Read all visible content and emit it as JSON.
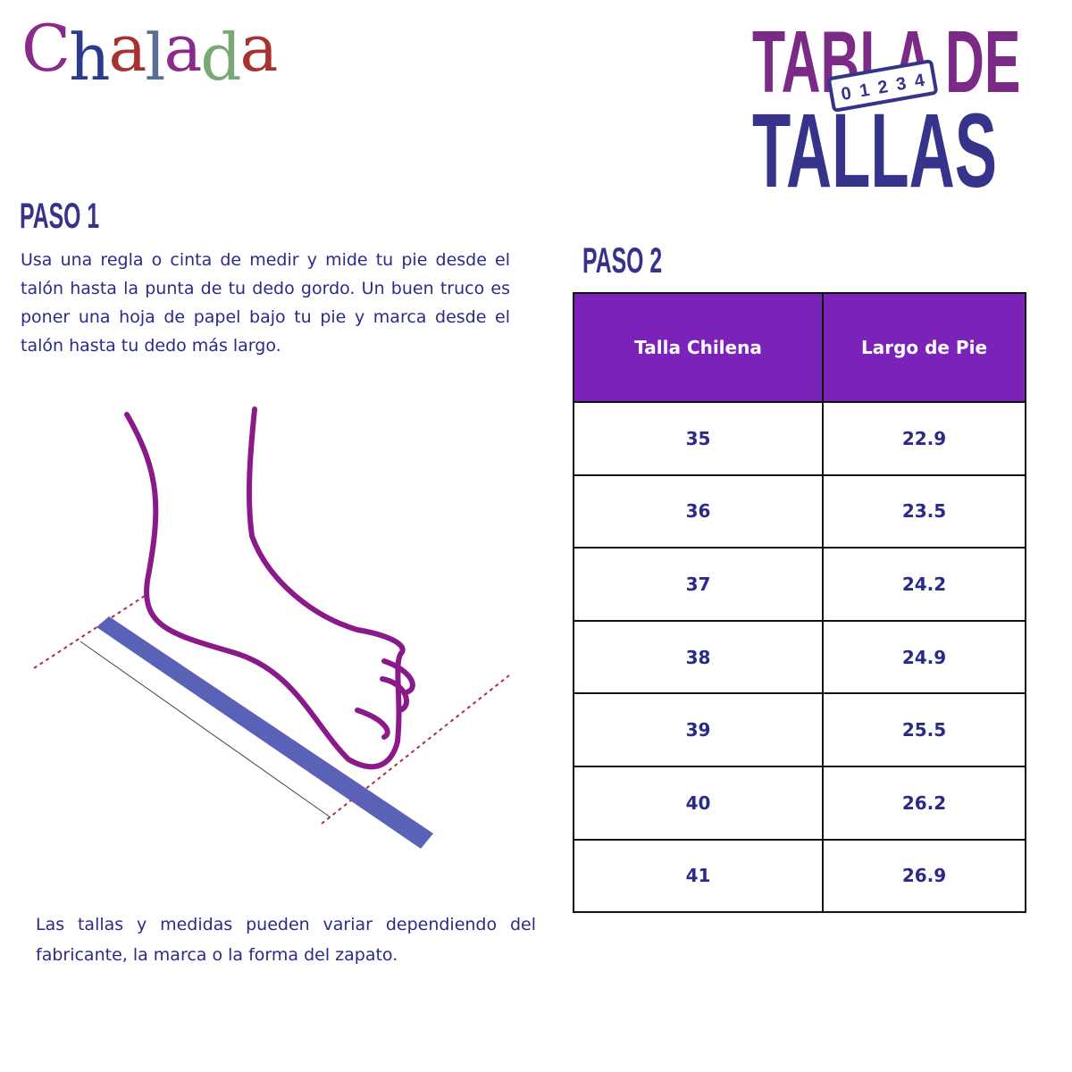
{
  "brand": {
    "logo_text": "Chalada",
    "logo_colors": [
      "#8a2a8a",
      "#2b3a8c",
      "#a83232",
      "#5a6e9a",
      "#8a2a8a",
      "#7aa874",
      "#a83232"
    ]
  },
  "title": {
    "line1": "TABLA DE",
    "line2": "TALLAS",
    "ruler_numbers": [
      "0",
      "1",
      "2",
      "3",
      "4"
    ]
  },
  "step1": {
    "heading": "PASO 1",
    "text": "Usa una regla o cinta de medir y mide tu pie desde el talón hasta la punta de tu dedo gordo. Un buen truco es poner una hoja de papel bajo tu pie y marca desde el talón hasta tu dedo más largo."
  },
  "note": "Las tallas y medidas pueden variar dependiendo del fabricante, la marca o la forma del zapato.",
  "step2": {
    "heading": "PASO 2"
  },
  "table": {
    "headers": [
      "Talla Chilena",
      "Largo de Pie"
    ],
    "rows": [
      [
        "35",
        "22.9"
      ],
      [
        "36",
        "23.5"
      ],
      [
        "37",
        "24.2"
      ],
      [
        "38",
        "24.9"
      ],
      [
        "39",
        "25.5"
      ],
      [
        "40",
        "26.2"
      ],
      [
        "41",
        "26.9"
      ]
    ]
  },
  "colors": {
    "header_bg": "#7b22b8",
    "purple": "#7b2a86",
    "navy": "#36348a"
  }
}
